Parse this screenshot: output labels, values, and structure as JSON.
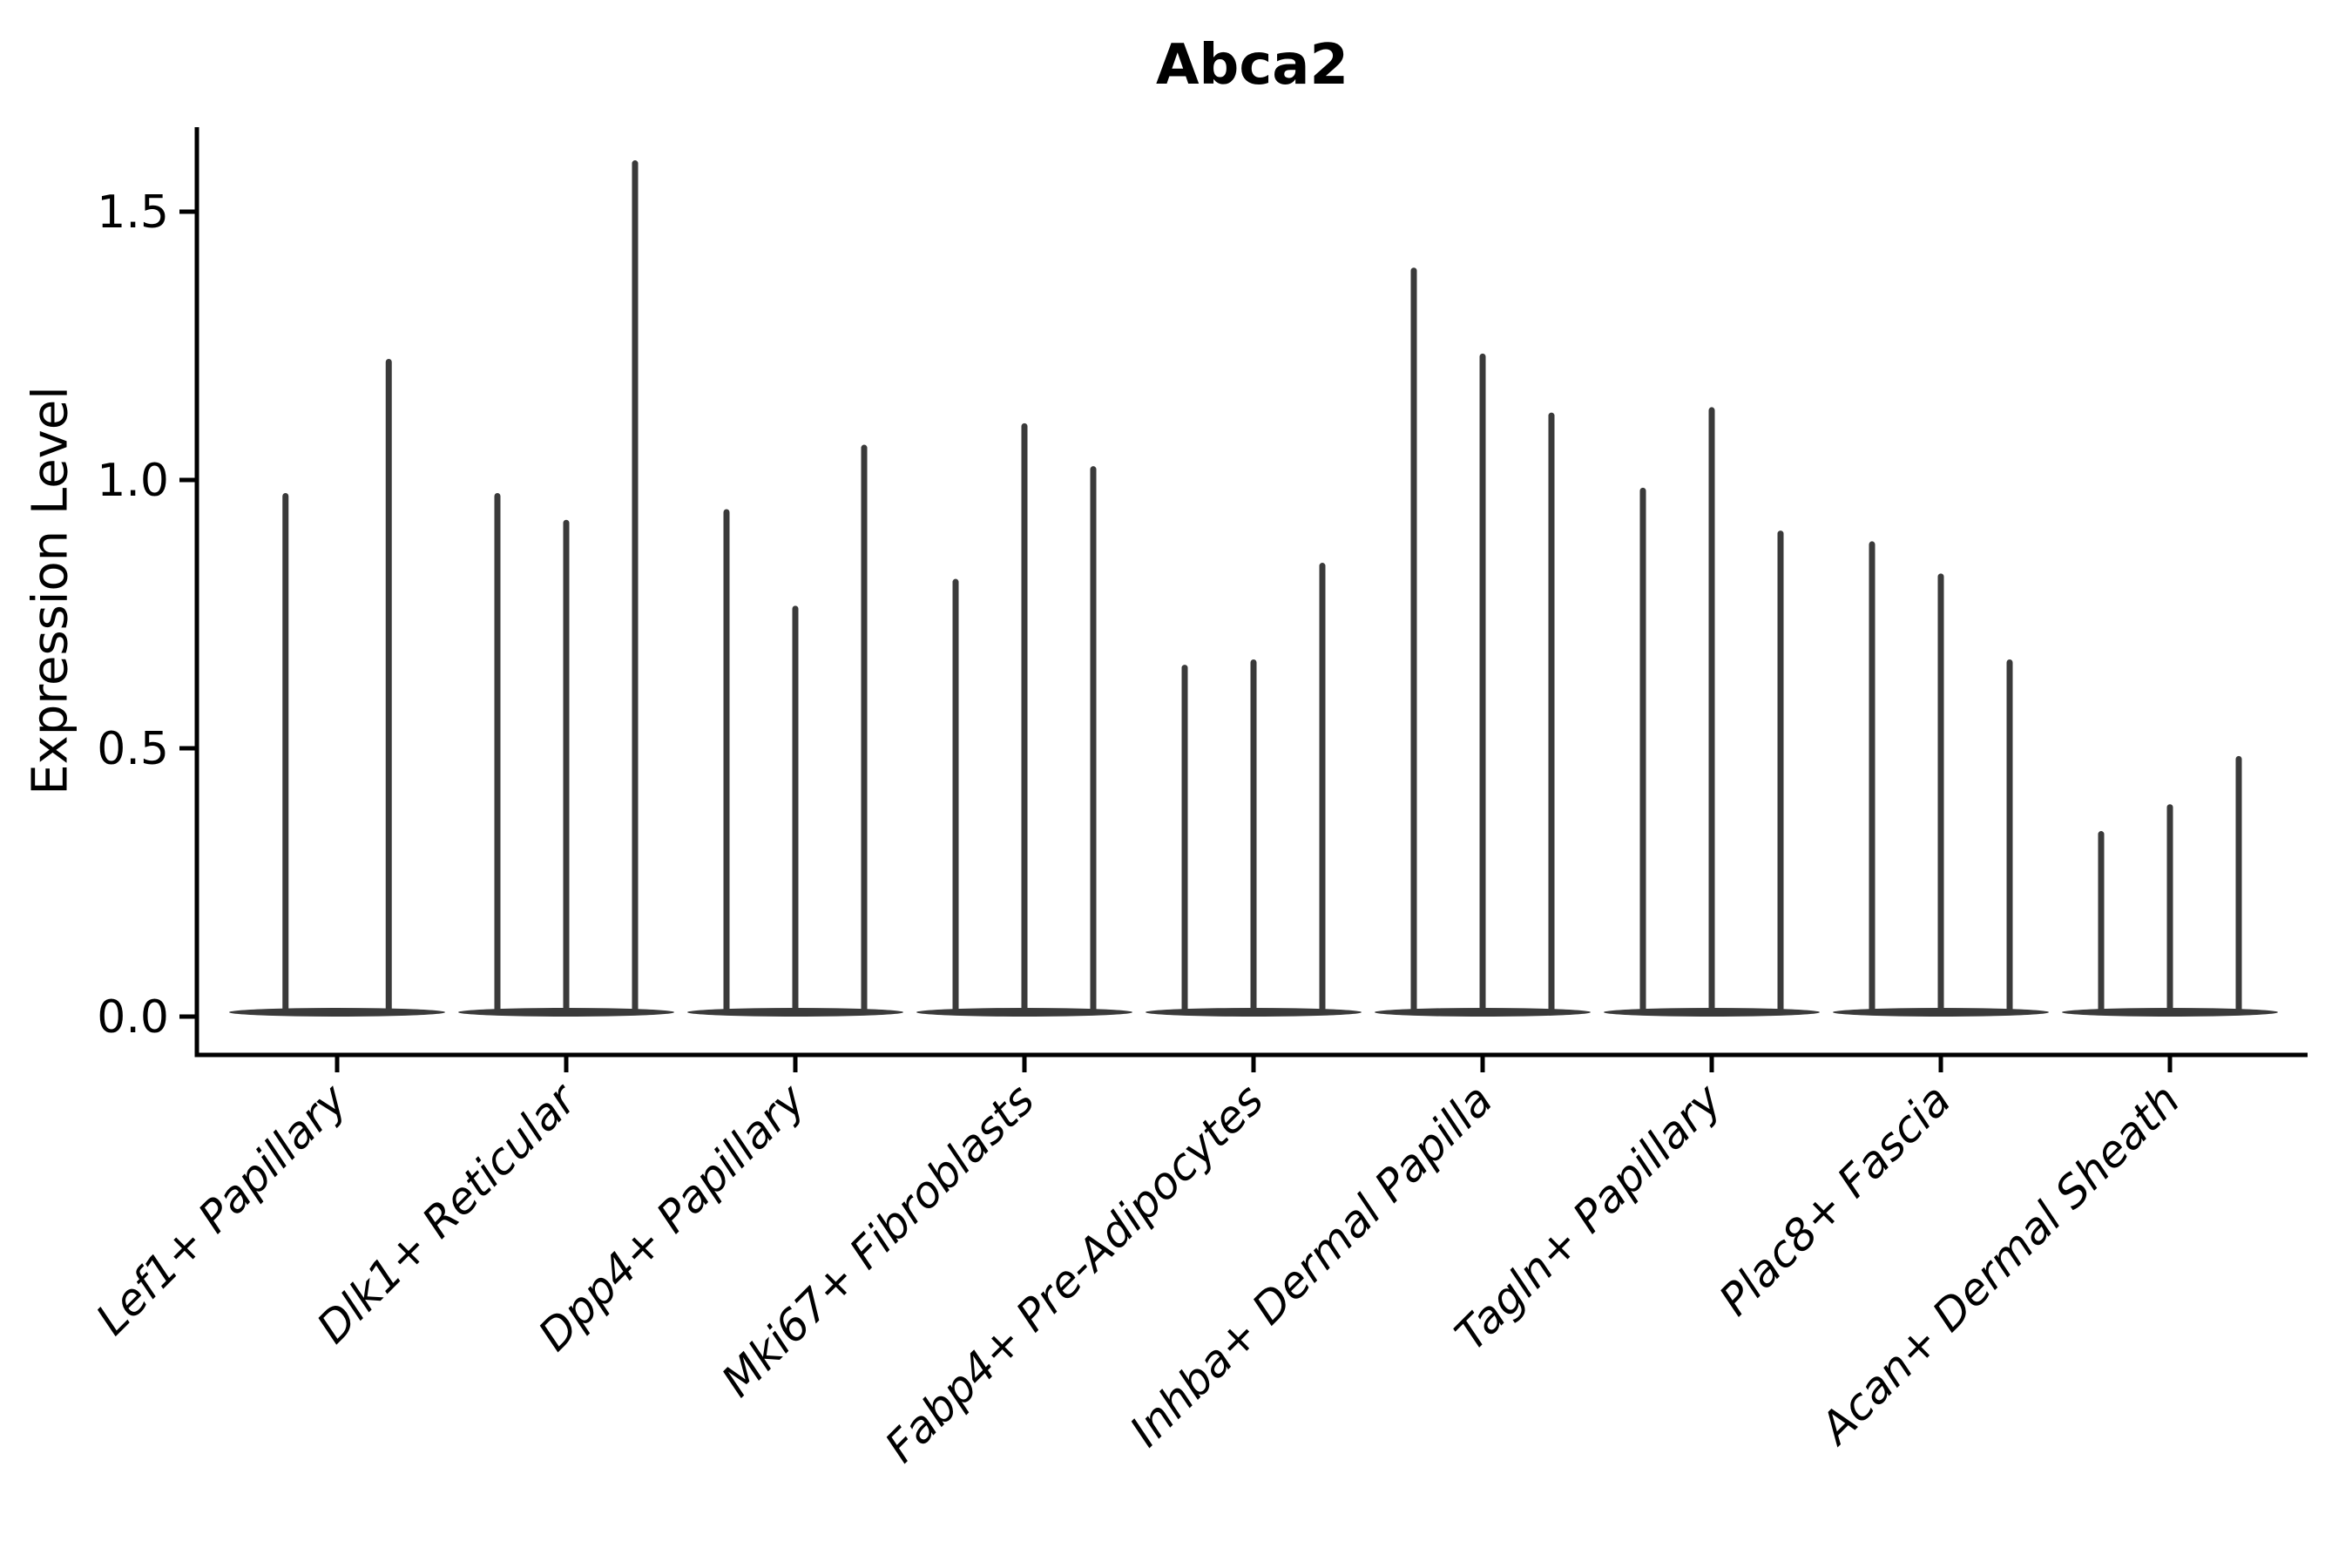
{
  "chart_data": {
    "type": "violin",
    "title": "Abca2",
    "ylabel": "Expression Level",
    "xlabel": "",
    "yticks": [
      "0.0",
      "0.5",
      "1.0",
      "1.5"
    ],
    "ytick_values": [
      0.0,
      0.5,
      1.0,
      1.5
    ],
    "ylim": [
      -0.07,
      1.66
    ],
    "grid": false,
    "legend": false,
    "violin_color": "#3a3a3a",
    "axis_color": "#000000",
    "baseline_value": 0.0,
    "categories": [
      "Lef1+ Papillary",
      "Dlk1+ Reticular",
      "Dpp4+ Papillary",
      "Mki67+ Fibroblasts",
      "Fabp4+ Pre-Adipocytes",
      "Inhba+ Dermal Papilla",
      "Tagln+ Papillary",
      "Plac8+ Fascia",
      "Acan+ Dermal Sheath"
    ],
    "groups": [
      {
        "category": "Lef1+ Papillary",
        "spike_maxima": [
          0.97,
          1.22
        ]
      },
      {
        "category": "Dlk1+ Reticular",
        "spike_maxima": [
          0.97,
          0.92,
          1.59
        ]
      },
      {
        "category": "Dpp4+ Papillary",
        "spike_maxima": [
          0.94,
          0.76,
          1.06
        ]
      },
      {
        "category": "Mki67+ Fibroblasts",
        "spike_maxima": [
          0.81,
          1.1,
          1.02
        ]
      },
      {
        "category": "Fabp4+ Pre-Adipocytes",
        "spike_maxima": [
          0.65,
          0.66,
          0.84
        ]
      },
      {
        "category": "Inhba+ Dermal Papilla",
        "spike_maxima": [
          1.39,
          1.23,
          1.12
        ]
      },
      {
        "category": "Tagln+ Papillary",
        "spike_maxima": [
          0.98,
          1.13,
          0.9
        ]
      },
      {
        "category": "Plac8+ Fascia",
        "spike_maxima": [
          0.88,
          0.82,
          0.66
        ]
      },
      {
        "category": "Acan+ Dermal Sheath",
        "spike_maxima": [
          0.34,
          0.39,
          0.48
        ]
      }
    ]
  }
}
